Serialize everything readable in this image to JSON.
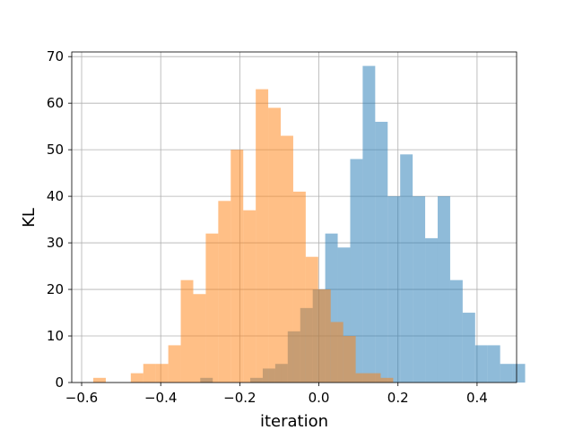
{
  "chart_data": {
    "type": "histogram",
    "title": "",
    "xlabel": "iteration",
    "ylabel": "KL",
    "xlim": [
      -0.625,
      0.5
    ],
    "ylim": [
      0,
      71
    ],
    "xticks": [
      -0.6,
      -0.4,
      -0.2,
      0.0,
      0.2,
      0.4
    ],
    "xtick_labels": [
      "−0.6",
      "−0.4",
      "−0.2",
      "0.0",
      "0.2",
      "0.4"
    ],
    "yticks": [
      0,
      10,
      20,
      30,
      40,
      50,
      60,
      70
    ],
    "ytick_labels": [
      "0",
      "10",
      "20",
      "30",
      "40",
      "50",
      "60",
      "70"
    ],
    "grid": true,
    "legend": false,
    "alpha": 0.5,
    "series": [
      {
        "color": "#1f77b4",
        "bin_start": -0.3,
        "bin_width": 0.0316,
        "values": [
          1,
          0,
          0,
          0,
          1,
          3,
          4,
          11,
          16,
          20,
          32,
          29,
          48,
          68,
          56,
          40,
          49,
          40,
          31,
          40,
          22,
          15,
          8,
          8,
          4,
          4
        ]
      },
      {
        "color": "#ff7f0e",
        "bin_start": -0.5705,
        "bin_width": 0.0316,
        "values": [
          1,
          0,
          0,
          2,
          4,
          4,
          8,
          22,
          19,
          32,
          39,
          50,
          37,
          63,
          59,
          53,
          41,
          27,
          20,
          13,
          10,
          2,
          2,
          1
        ]
      }
    ]
  }
}
